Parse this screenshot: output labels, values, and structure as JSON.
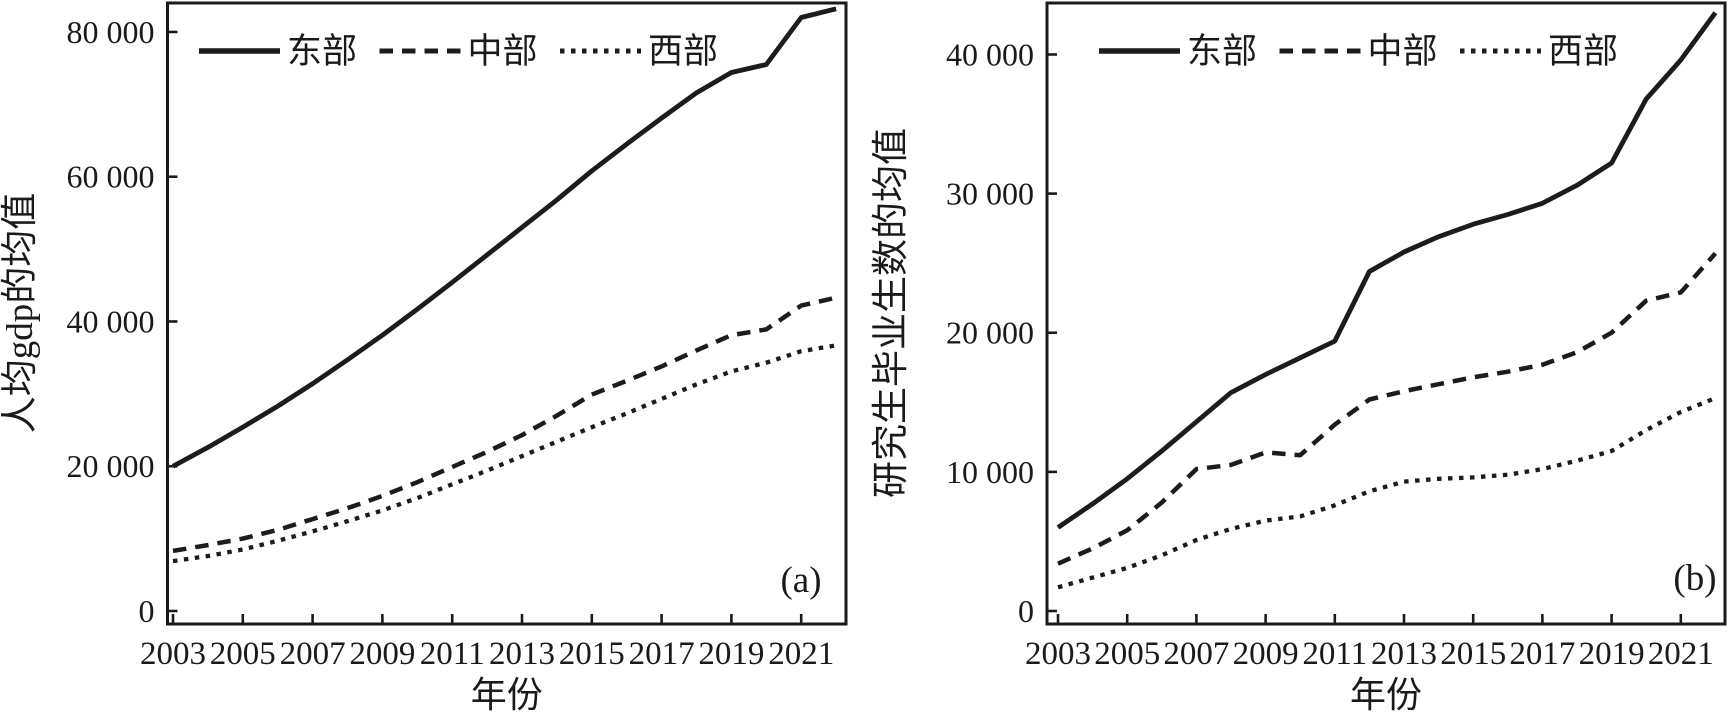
{
  "figure": {
    "description": "Two side-by-side line charts comparing East, Central and West regions of China, 2003-2022",
    "line_color": "#1c1c1c",
    "frame_color": "#1a1a1a",
    "background": "#ffffff"
  },
  "chart_data": [
    {
      "type": "line",
      "panel_label": "(a)",
      "ylabel": "人均gdp的均值",
      "xlabel": "年份",
      "legend_position": "top-inside",
      "grid": false,
      "x": [
        2003,
        2004,
        2005,
        2006,
        2007,
        2008,
        2009,
        2010,
        2011,
        2012,
        2013,
        2014,
        2015,
        2016,
        2017,
        2018,
        2019,
        2020,
        2021,
        2022
      ],
      "series": [
        {
          "name": "东部",
          "key": "east",
          "style": "solid",
          "values": [
            20000,
            22600,
            25400,
            28300,
            31400,
            34700,
            38100,
            41700,
            45400,
            49200,
            53000,
            56800,
            60800,
            64500,
            68100,
            71600,
            74400,
            75500,
            82000,
            83200
          ]
        },
        {
          "name": "中部",
          "key": "central",
          "style": "dashed",
          "values": [
            8300,
            9100,
            10000,
            11200,
            12700,
            14200,
            15900,
            17800,
            19900,
            22000,
            24300,
            27000,
            29900,
            31800,
            33800,
            36000,
            38100,
            38900,
            42200,
            43300
          ]
        },
        {
          "name": "西部",
          "key": "west",
          "style": "dotted",
          "values": [
            6900,
            7600,
            8500,
            9700,
            11000,
            12400,
            13900,
            15600,
            17500,
            19400,
            21400,
            23400,
            25400,
            27300,
            29300,
            31300,
            33100,
            34300,
            35900,
            36700
          ]
        }
      ],
      "ylim": [
        0,
        84000
      ],
      "yticks": {
        "values": [
          0,
          20000,
          40000,
          60000,
          80000
        ],
        "labels": [
          "0",
          "20 000",
          "40 000",
          "60 000",
          "80 000"
        ]
      },
      "xticks": {
        "values": [
          2003,
          2005,
          2007,
          2009,
          2011,
          2013,
          2015,
          2017,
          2019,
          2021
        ],
        "labels": [
          "2003",
          "2005",
          "2007",
          "2009",
          "2011",
          "2013",
          "2015",
          "2017",
          "2019",
          "2021"
        ]
      }
    },
    {
      "type": "line",
      "panel_label": "(b)",
      "ylabel": "研究生毕业生数的均值",
      "xlabel": "年份",
      "legend_position": "top-inside",
      "grid": false,
      "x": [
        2003,
        2004,
        2005,
        2006,
        2007,
        2008,
        2009,
        2010,
        2011,
        2012,
        2013,
        2014,
        2015,
        2016,
        2017,
        2018,
        2019,
        2020,
        2021,
        2022
      ],
      "series": [
        {
          "name": "东部",
          "key": "east",
          "style": "solid",
          "values": [
            6000,
            7700,
            9500,
            11500,
            13600,
            15700,
            17000,
            18200,
            19400,
            24400,
            25800,
            26900,
            27800,
            28500,
            29300,
            30600,
            32200,
            36800,
            39600,
            43000
          ]
        },
        {
          "name": "中部",
          "key": "central",
          "style": "dashed",
          "values": [
            3400,
            4500,
            5800,
            7800,
            10200,
            10500,
            11400,
            11200,
            13400,
            15200,
            15800,
            16300,
            16800,
            17200,
            17700,
            18600,
            20000,
            22300,
            22900,
            25700
          ]
        },
        {
          "name": "西部",
          "key": "west",
          "style": "dotted",
          "values": [
            1700,
            2400,
            3100,
            4000,
            5100,
            5900,
            6500,
            6800,
            7600,
            8600,
            9300,
            9500,
            9600,
            9800,
            10200,
            10800,
            11500,
            13000,
            14300,
            15300
          ]
        }
      ],
      "ylim": [
        0,
        43700
      ],
      "yticks": {
        "values": [
          0,
          10000,
          20000,
          30000,
          40000
        ],
        "labels": [
          "0",
          "10 000",
          "20 000",
          "30 000",
          "40 000"
        ]
      },
      "xticks": {
        "values": [
          2003,
          2005,
          2007,
          2009,
          2011,
          2013,
          2015,
          2017,
          2019,
          2021
        ],
        "labels": [
          "2003",
          "2005",
          "2007",
          "2009",
          "2011",
          "2013",
          "2015",
          "2017",
          "2019",
          "2021"
        ]
      }
    }
  ]
}
